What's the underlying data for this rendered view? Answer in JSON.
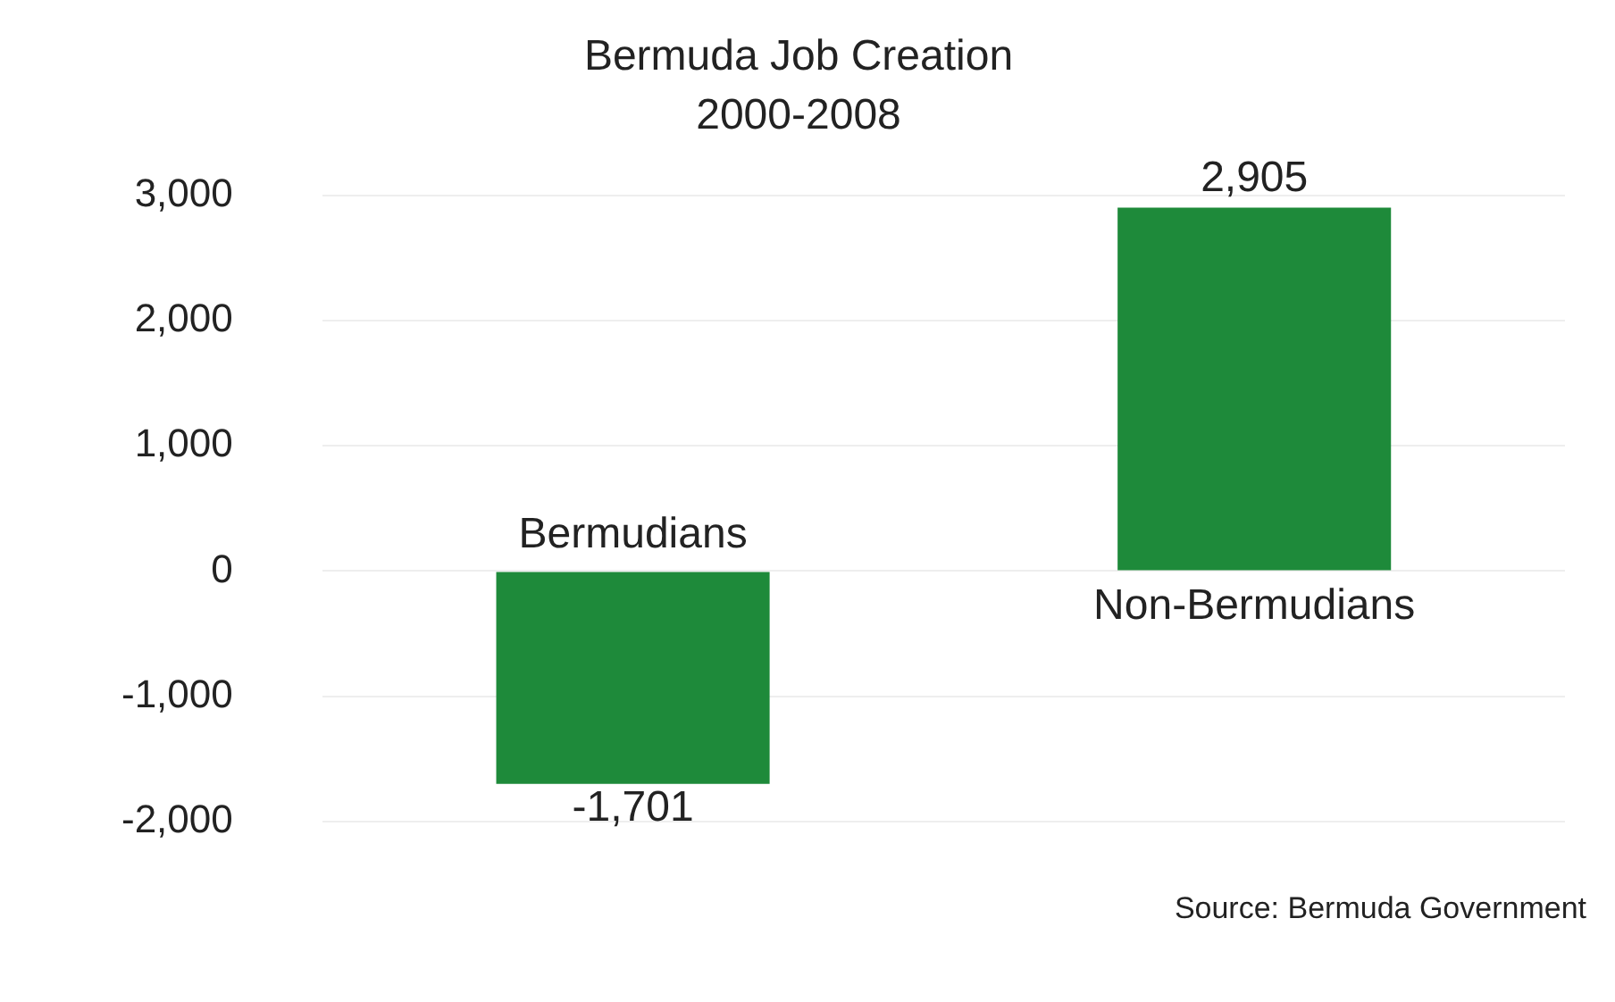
{
  "chart_data": {
    "type": "bar",
    "title": "Bermuda Job Creation",
    "subtitle": "2000-2008",
    "categories": [
      "Bermudians",
      "Non-Bermudians"
    ],
    "values": [
      -1701,
      2905
    ],
    "value_labels": [
      "-1,701",
      "2,905"
    ],
    "color": "#1e8a3a",
    "ylim": [
      -2000,
      3000
    ],
    "yticks": [
      {
        "value": -2000,
        "label": "-2,000"
      },
      {
        "value": -1000,
        "label": "-1,000"
      },
      0,
      {
        "value": 1000,
        "label": "1,000"
      },
      {
        "value": 2000,
        "label": "2,000"
      },
      {
        "value": 3000,
        "label": "3,000"
      }
    ],
    "grid": "y",
    "legend": false,
    "annotations": [
      "Source: Bermuda Government"
    ]
  }
}
